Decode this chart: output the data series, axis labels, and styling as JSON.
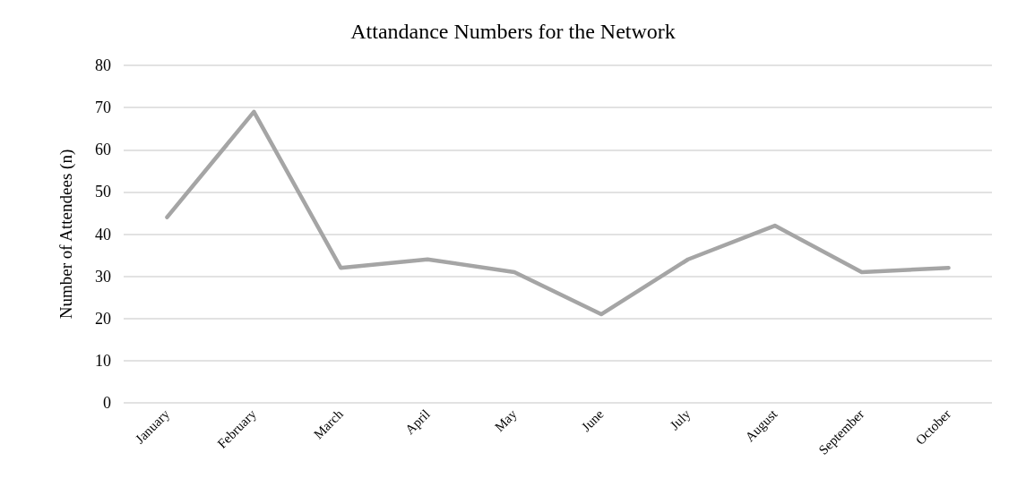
{
  "chart_data": {
    "type": "line",
    "title": "Attandance Numbers for the Network",
    "ylabel": "Number of Attendees (n)",
    "categories": [
      "January",
      "February",
      "March",
      "April",
      "May",
      "June",
      "July",
      "August",
      "September",
      "October"
    ],
    "series": [
      {
        "color": "#a5a5a5",
        "values": [
          44,
          69,
          32,
          34,
          31,
          21,
          34,
          42,
          31,
          32
        ]
      }
    ],
    "ylim": [
      0,
      80
    ],
    "yticks": [
      0,
      10,
      20,
      30,
      40,
      50,
      60,
      70,
      80
    ],
    "grid": "y",
    "marker": "none",
    "line_style": "solid"
  }
}
